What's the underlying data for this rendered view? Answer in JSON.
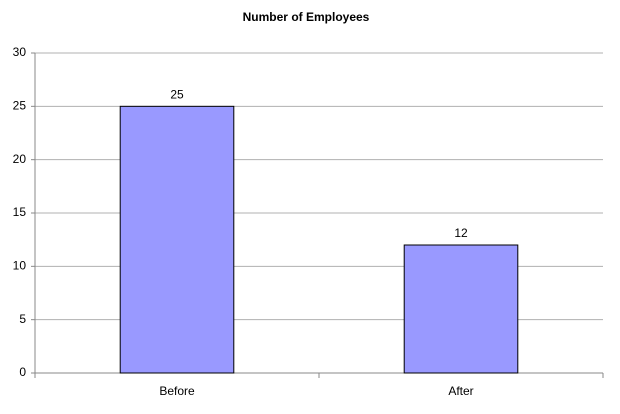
{
  "chart_data": {
    "type": "bar",
    "title": "Number of Employees",
    "categories": [
      "Before",
      "After"
    ],
    "values": [
      25,
      12
    ],
    "color": "#9999ff",
    "ylim": [
      0,
      30
    ],
    "yticks": [
      0,
      5,
      10,
      15,
      20,
      25,
      30
    ],
    "grid": true
  }
}
